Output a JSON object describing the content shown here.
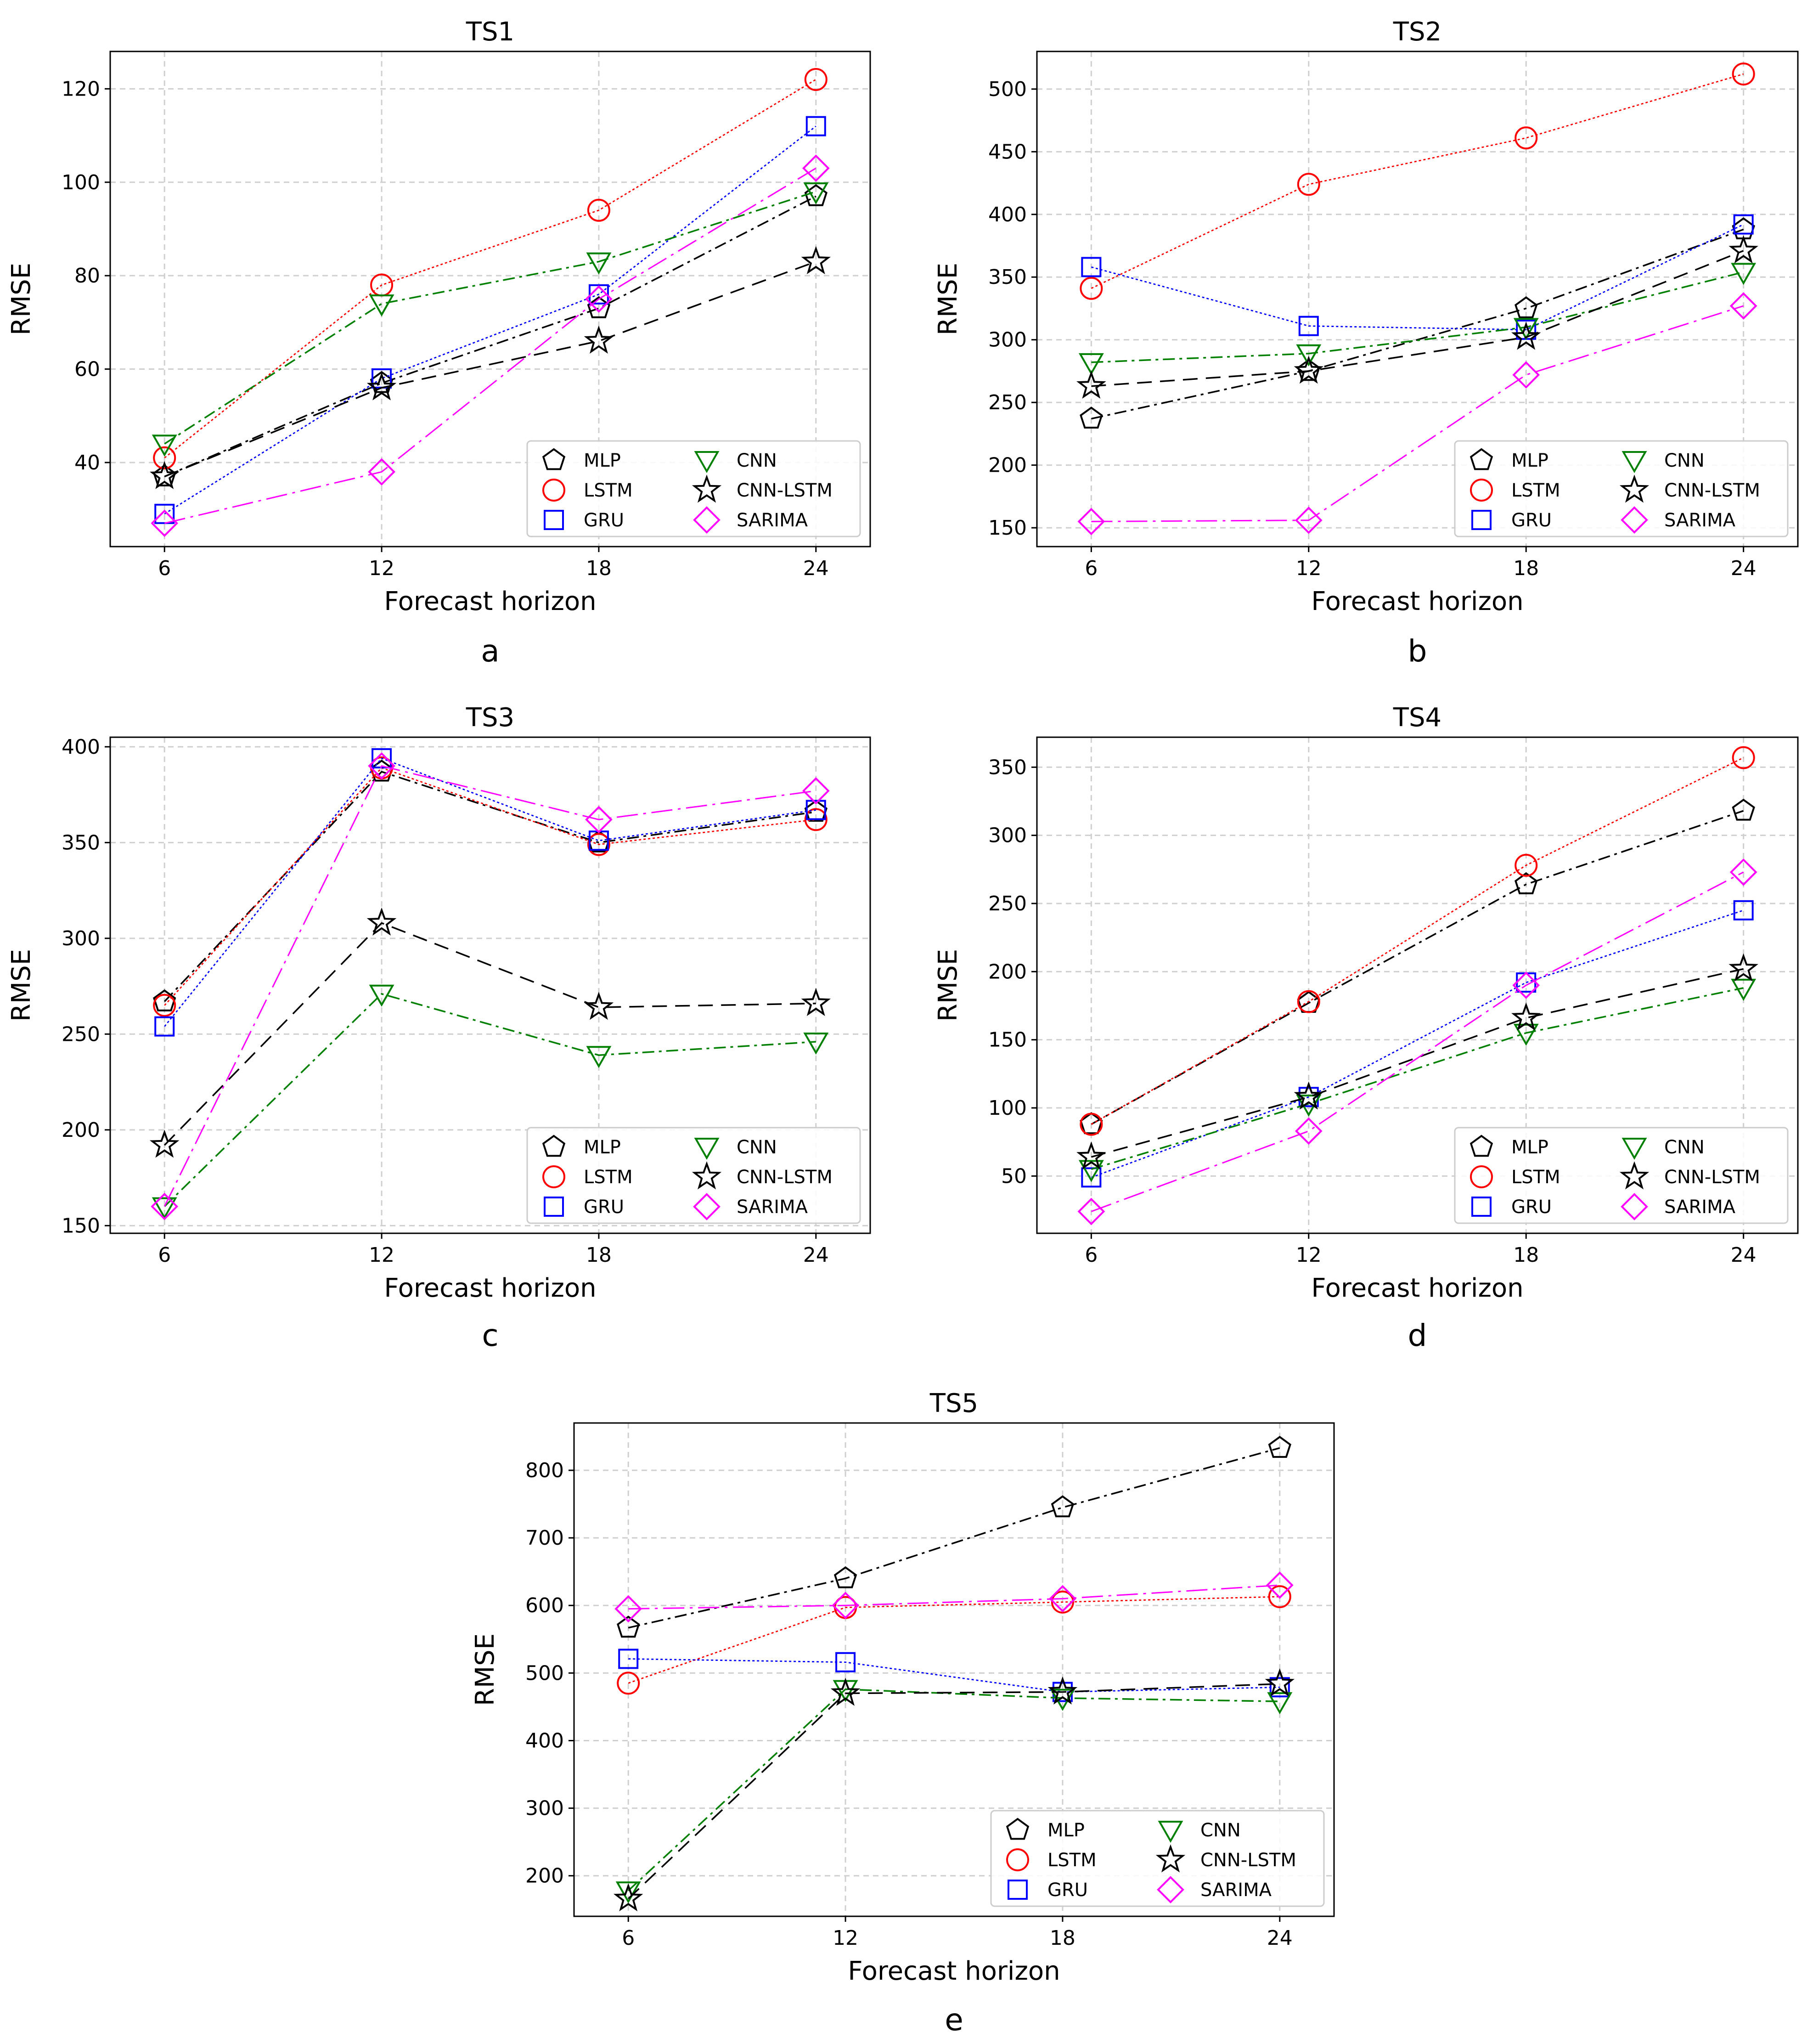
{
  "figure": {
    "panel_letters": [
      "a",
      "b",
      "c",
      "d",
      "e"
    ]
  },
  "colors": {
    "MLP": "#000000",
    "LSTM": "#ff0000",
    "GRU": "#0000ff",
    "CNN": "#008000",
    "CNN-LSTM": "#000000",
    "SARIMA": "#ff00ff",
    "grid": "#cfcfcf"
  },
  "chart_data": [
    {
      "type": "line",
      "title": "TS1",
      "xlabel": "Forecast horizon",
      "ylabel": "RMSE",
      "x": [
        6,
        12,
        18,
        24
      ],
      "xlim": [
        4.5,
        25.5
      ],
      "ylim": [
        22,
        128
      ],
      "yticks": [
        40,
        60,
        80,
        100,
        120
      ],
      "xticks": [
        6,
        12,
        18,
        24
      ],
      "grid": true,
      "legend": "lower-right",
      "series": [
        {
          "name": "MLP",
          "values": [
            37,
            57,
            73,
            97
          ],
          "marker": "pentagon",
          "line": "dashdot"
        },
        {
          "name": "LSTM",
          "values": [
            41,
            78,
            94,
            122
          ],
          "marker": "circle",
          "line": "dotted"
        },
        {
          "name": "GRU",
          "values": [
            29,
            58,
            76,
            112
          ],
          "marker": "square",
          "line": "dotted"
        },
        {
          "name": "CNN",
          "values": [
            44,
            74,
            83,
            98
          ],
          "marker": "triangle-down",
          "line": "dashdot"
        },
        {
          "name": "CNN-LSTM",
          "values": [
            37,
            56,
            66,
            83
          ],
          "marker": "star",
          "line": "dashed"
        },
        {
          "name": "SARIMA",
          "values": [
            27,
            38,
            75,
            103
          ],
          "marker": "diamond",
          "line": "dashdotdot"
        }
      ]
    },
    {
      "type": "line",
      "title": "TS2",
      "xlabel": "Forecast horizon",
      "ylabel": "RMSE",
      "x": [
        6,
        12,
        18,
        24
      ],
      "xlim": [
        4.5,
        25.5
      ],
      "ylim": [
        135,
        530
      ],
      "yticks": [
        150,
        200,
        250,
        300,
        350,
        400,
        450,
        500
      ],
      "xticks": [
        6,
        12,
        18,
        24
      ],
      "grid": true,
      "legend": "lower-right",
      "series": [
        {
          "name": "MLP",
          "values": [
            237,
            275,
            325,
            388
          ],
          "marker": "pentagon",
          "line": "dashdot"
        },
        {
          "name": "LSTM",
          "values": [
            341,
            424,
            461,
            512
          ],
          "marker": "circle",
          "line": "dotted"
        },
        {
          "name": "GRU",
          "values": [
            358,
            311,
            308,
            392
          ],
          "marker": "square",
          "line": "dotted"
        },
        {
          "name": "CNN",
          "values": [
            282,
            289,
            310,
            354
          ],
          "marker": "triangle-down",
          "line": "dashdot"
        },
        {
          "name": "CNN-LSTM",
          "values": [
            263,
            275,
            302,
            371
          ],
          "marker": "star",
          "line": "dashed"
        },
        {
          "name": "SARIMA",
          "values": [
            155,
            156,
            272,
            327
          ],
          "marker": "diamond",
          "line": "dashdotdot"
        }
      ]
    },
    {
      "type": "line",
      "title": "TS3",
      "xlabel": "Forecast horizon",
      "ylabel": "RMSE",
      "x": [
        6,
        12,
        18,
        24
      ],
      "xlim": [
        4.5,
        25.5
      ],
      "ylim": [
        146,
        405
      ],
      "yticks": [
        150,
        200,
        250,
        300,
        350,
        400
      ],
      "xticks": [
        6,
        12,
        18,
        24
      ],
      "grid": true,
      "legend": "lower-right",
      "series": [
        {
          "name": "MLP",
          "values": [
            267,
            387,
            350,
            366
          ],
          "marker": "pentagon",
          "line": "dashdot"
        },
        {
          "name": "LSTM",
          "values": [
            265,
            389,
            349,
            362
          ],
          "marker": "circle",
          "line": "dotted"
        },
        {
          "name": "GRU",
          "values": [
            254,
            394,
            351,
            367
          ],
          "marker": "square",
          "line": "dotted"
        },
        {
          "name": "CNN",
          "values": [
            160,
            271,
            239,
            246
          ],
          "marker": "triangle-down",
          "line": "dashdot"
        },
        {
          "name": "CNN-LSTM",
          "values": [
            192,
            308,
            264,
            266
          ],
          "marker": "star",
          "line": "dashed"
        },
        {
          "name": "SARIMA",
          "values": [
            160,
            390,
            362,
            377
          ],
          "marker": "diamond",
          "line": "dashdotdot"
        }
      ]
    },
    {
      "type": "line",
      "title": "TS4",
      "xlabel": "Forecast horizon",
      "ylabel": "RMSE",
      "x": [
        6,
        12,
        18,
        24
      ],
      "xlim": [
        4.5,
        25.5
      ],
      "ylim": [
        8,
        372
      ],
      "yticks": [
        50,
        100,
        150,
        200,
        250,
        300,
        350
      ],
      "xticks": [
        6,
        12,
        18,
        24
      ],
      "grid": true,
      "legend": "lower-right",
      "series": [
        {
          "name": "MLP",
          "values": [
            88,
            177,
            264,
            318
          ],
          "marker": "pentagon",
          "line": "dashdot"
        },
        {
          "name": "LSTM",
          "values": [
            88,
            178,
            278,
            357
          ],
          "marker": "circle",
          "line": "dotted"
        },
        {
          "name": "GRU",
          "values": [
            49,
            108,
            192,
            245
          ],
          "marker": "square",
          "line": "dotted"
        },
        {
          "name": "CNN",
          "values": [
            55,
            103,
            155,
            188
          ],
          "marker": "triangle-down",
          "line": "dashdot"
        },
        {
          "name": "CNN-LSTM",
          "values": [
            64,
            108,
            166,
            202
          ],
          "marker": "star",
          "line": "dashed"
        },
        {
          "name": "SARIMA",
          "values": [
            24,
            83,
            190,
            273
          ],
          "marker": "diamond",
          "line": "dashdotdot"
        }
      ]
    },
    {
      "type": "line",
      "title": "TS5",
      "xlabel": "Forecast horizon",
      "ylabel": "RMSE",
      "x": [
        6,
        12,
        18,
        24
      ],
      "xlim": [
        4.5,
        25.5
      ],
      "ylim": [
        140,
        870
      ],
      "yticks": [
        200,
        300,
        400,
        500,
        600,
        700,
        800
      ],
      "xticks": [
        6,
        12,
        18,
        24
      ],
      "grid": true,
      "legend": "lower-right",
      "series": [
        {
          "name": "MLP",
          "values": [
            567,
            640,
            745,
            833
          ],
          "marker": "pentagon",
          "line": "dashdot"
        },
        {
          "name": "LSTM",
          "values": [
            485,
            597,
            605,
            613
          ],
          "marker": "circle",
          "line": "dotted"
        },
        {
          "name": "GRU",
          "values": [
            521,
            516,
            472,
            479
          ],
          "marker": "square",
          "line": "dotted"
        },
        {
          "name": "CNN",
          "values": [
            178,
            476,
            463,
            458
          ],
          "marker": "triangle-down",
          "line": "dashdot"
        },
        {
          "name": "CNN-LSTM",
          "values": [
            166,
            470,
            472,
            484
          ],
          "marker": "star",
          "line": "dashed"
        },
        {
          "name": "SARIMA",
          "values": [
            595,
            600,
            610,
            630
          ],
          "marker": "diamond",
          "line": "dashdotdot"
        }
      ]
    }
  ]
}
